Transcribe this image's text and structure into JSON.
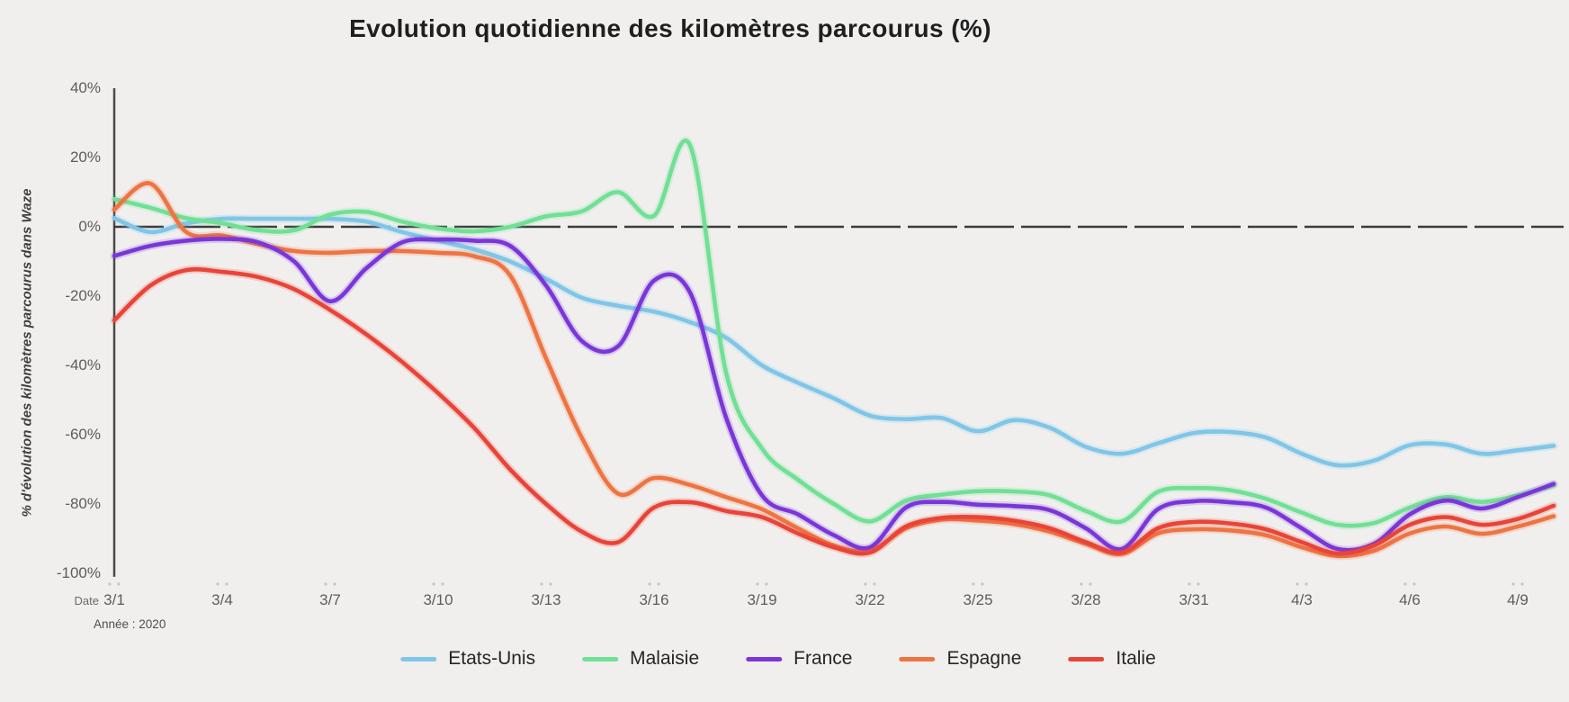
{
  "title": "Evolution quotidienne des kilomètres parcourus (%)",
  "y_axis": {
    "title": "% d'évolution des kilomètres parcourus dans Waze",
    "tick_labels": [
      "40%",
      "20%",
      "0%",
      "-20%",
      "-40%",
      "-60%",
      "-80%",
      "-100%"
    ],
    "tick_values": [
      40,
      20,
      0,
      -20,
      -40,
      -60,
      -80,
      -100
    ]
  },
  "x_axis": {
    "date_label": "Date",
    "year_note": "Année : 2020",
    "tick_labels": [
      "3/1",
      "3/4",
      "3/7",
      "3/10",
      "3/13",
      "3/16",
      "3/19",
      "3/22",
      "3/25",
      "3/28",
      "3/31",
      "4/3",
      "4/6",
      "4/9"
    ],
    "tick_step_days": 3
  },
  "palette": {
    "background": "#f0efee",
    "axis_line": "#4a4a4a",
    "zero_line": "#3b3b3b",
    "tick_dot": "#c9c9c9",
    "tick_text": "#5d5d5d",
    "title_text": "#1f1f1f"
  },
  "chart_data": {
    "type": "line",
    "title": "Evolution quotidienne des kilomètres parcourus (%)",
    "xlabel": "Date",
    "ylabel": "% d'évolution des kilomètres parcourus dans Waze",
    "ylim": [
      -100,
      40
    ],
    "grid": false,
    "zero_line": true,
    "legend_position": "bottom",
    "x": [
      "3/1",
      "3/2",
      "3/3",
      "3/4",
      "3/5",
      "3/6",
      "3/7",
      "3/8",
      "3/9",
      "3/10",
      "3/11",
      "3/12",
      "3/13",
      "3/14",
      "3/15",
      "3/16",
      "3/17",
      "3/18",
      "3/19",
      "3/20",
      "3/21",
      "3/22",
      "3/23",
      "3/24",
      "3/25",
      "3/26",
      "3/27",
      "3/28",
      "3/29",
      "3/30",
      "3/31",
      "4/1",
      "4/2",
      "4/3",
      "4/4",
      "4/5",
      "4/6",
      "4/7",
      "4/8",
      "4/9",
      "4/10"
    ],
    "series": [
      {
        "name": "Etats-Unis",
        "color": "#7fc6e8",
        "values": [
          2.5,
          -1.5,
          1,
          2.3,
          2.3,
          2.3,
          2.3,
          1.5,
          -1.5,
          -4,
          -6.5,
          -10,
          -15,
          -20.5,
          -22.8,
          -24.5,
          -27.5,
          -32,
          -40,
          -45,
          -49.5,
          -54.5,
          -55.5,
          -55.2,
          -59,
          -55.8,
          -58,
          -63.5,
          -65.5,
          -62.5,
          -59.5,
          -59.2,
          -60.8,
          -65.5,
          -68.8,
          -67.5,
          -63,
          -62.8,
          -65.5,
          -64.5,
          -63.2
        ]
      },
      {
        "name": "Malaisie",
        "color": "#70e095",
        "values": [
          8,
          5.5,
          2.5,
          1,
          -1,
          -1,
          3.5,
          4.3,
          1.5,
          -0.5,
          -1.3,
          0,
          3,
          4.5,
          10,
          3.2,
          23.5,
          -42,
          -64,
          -73,
          -80,
          -85,
          -79,
          -77.3,
          -76.3,
          -76.4,
          -77.5,
          -82,
          -85,
          -76.5,
          -75.4,
          -76,
          -78.5,
          -82.5,
          -86,
          -85.5,
          -81,
          -78,
          -79.4,
          -77.5,
          -74.6
        ]
      },
      {
        "name": "France",
        "color": "#7a36d9",
        "values": [
          -8.4,
          -5.5,
          -4,
          -3.5,
          -4.5,
          -10,
          -21.5,
          -12,
          -4.5,
          -3.7,
          -4,
          -5.5,
          -17,
          -33,
          -34.5,
          -15.5,
          -19,
          -55,
          -77.5,
          -83,
          -89,
          -92.5,
          -81,
          -79.4,
          -80.2,
          -80.6,
          -81.8,
          -87,
          -93,
          -81.5,
          -79.2,
          -79.5,
          -81,
          -87,
          -93,
          -91.5,
          -83,
          -79,
          -81.3,
          -78,
          -74.2
        ]
      },
      {
        "name": "Espagne",
        "color": "#ee7441",
        "values": [
          5,
          12.5,
          -1.5,
          -2.5,
          -5,
          -7,
          -7.5,
          -7,
          -7,
          -7.5,
          -8.5,
          -14,
          -38,
          -61,
          -77,
          -72.5,
          -74.5,
          -78,
          -81.5,
          -87,
          -92,
          -93.5,
          -87,
          -84.5,
          -84.8,
          -85.8,
          -88,
          -91.5,
          -94.4,
          -88.5,
          -87.3,
          -87.6,
          -89,
          -92.5,
          -95,
          -93.5,
          -88.5,
          -86.5,
          -88.6,
          -86.5,
          -83.5
        ]
      },
      {
        "name": "Italie",
        "color": "#e94438",
        "values": [
          -27,
          -17,
          -12.5,
          -13,
          -14.5,
          -18,
          -24,
          -31,
          -39,
          -48,
          -58,
          -70,
          -80,
          -88,
          -91,
          -81,
          -79.5,
          -82,
          -83.8,
          -88.5,
          -92.5,
          -94,
          -86.5,
          -84,
          -83.8,
          -84.8,
          -87,
          -91,
          -94,
          -87,
          -85.2,
          -85.6,
          -87.3,
          -91,
          -94.3,
          -92,
          -86,
          -83.8,
          -86,
          -84.3,
          -80.5
        ]
      }
    ],
    "draw_order": [
      0,
      1,
      3,
      2,
      4
    ]
  }
}
